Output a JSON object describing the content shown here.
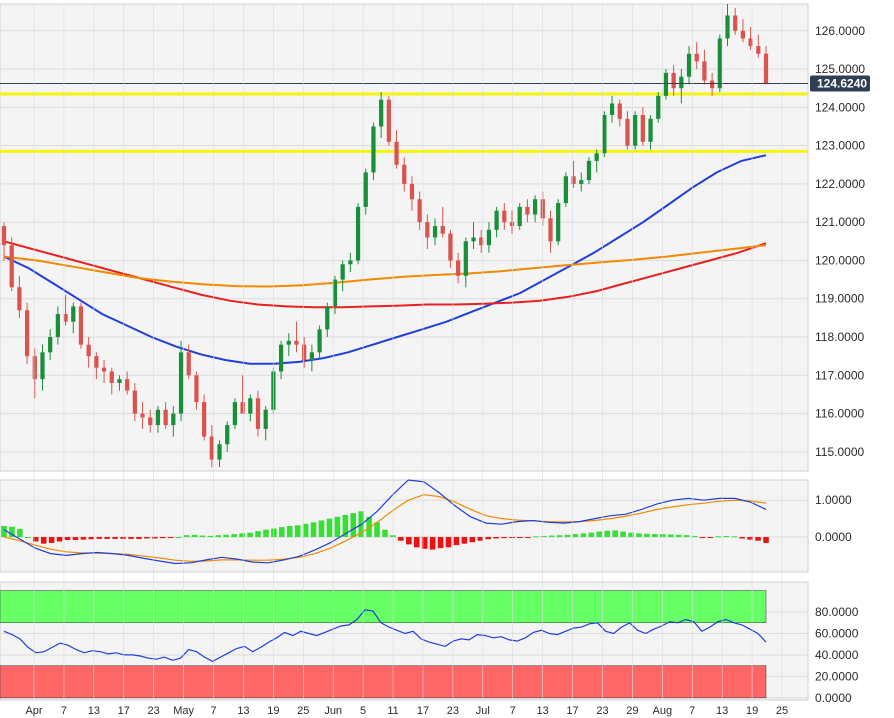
{
  "colors": {
    "background": "#ffffff",
    "panel_bg": "#f4f4f4",
    "grid": "#dcdcdc",
    "bull": "#1a8f3a",
    "bear": "#d9534f",
    "ma_fast": "#1f3fd8",
    "ma_mid": "#e82020",
    "ma_slow": "#f28a00",
    "horizontal_level": "#f5f50a",
    "price_tag": "#2f3e55",
    "macd_line": "#1f3fd8",
    "signal_line": "#f28a00",
    "hist_pos": "#33e033",
    "hist_neg": "#ee1111",
    "overbought_zone": "#66ff66",
    "oversold_zone": "#ff6666",
    "rsi_line": "#1f3fd8"
  },
  "chart_data": [
    {
      "type": "candlestick",
      "ylim": [
        114.5,
        126.7
      ],
      "yticks": [
        "115.0000",
        "116.0000",
        "117.0000",
        "118.0000",
        "119.0000",
        "120.0000",
        "121.0000",
        "122.0000",
        "123.0000",
        "124.0000",
        "125.0000",
        "126.0000"
      ],
      "xticks": [
        "Apr",
        "7",
        "13",
        "17",
        "23",
        "May",
        "7",
        "13",
        "19",
        "25",
        "Jun",
        "5",
        "11",
        "17",
        "23",
        "Jul",
        "7",
        "13",
        "17",
        "23",
        "29",
        "Aug",
        "7",
        "13",
        "19",
        "25"
      ],
      "last_price": "124.6240",
      "horizontal_levels": [
        124.35,
        122.85
      ],
      "candles": [
        [
          120.9,
          121.0,
          120.0,
          120.4
        ],
        [
          120.4,
          120.6,
          119.2,
          119.3
        ],
        [
          119.3,
          119.6,
          118.5,
          118.7
        ],
        [
          118.7,
          118.9,
          117.3,
          117.5
        ],
        [
          117.5,
          117.7,
          116.4,
          116.9
        ],
        [
          116.9,
          117.8,
          116.6,
          117.6
        ],
        [
          117.6,
          118.2,
          117.4,
          118.0
        ],
        [
          118.0,
          118.8,
          117.8,
          118.6
        ],
        [
          118.6,
          119.1,
          118.3,
          118.4
        ],
        [
          118.4,
          118.9,
          118.1,
          118.8
        ],
        [
          118.8,
          118.9,
          117.7,
          117.8
        ],
        [
          117.8,
          118.0,
          117.2,
          117.5
        ],
        [
          117.5,
          117.6,
          116.9,
          117.2
        ],
        [
          117.2,
          117.4,
          116.8,
          117.1
        ],
        [
          117.1,
          117.2,
          116.5,
          116.8
        ],
        [
          116.8,
          117.0,
          116.6,
          116.9
        ],
        [
          116.9,
          117.1,
          116.5,
          116.6
        ],
        [
          116.6,
          116.8,
          115.8,
          116.0
        ],
        [
          116.0,
          116.3,
          115.6,
          115.9
        ],
        [
          115.9,
          116.1,
          115.5,
          115.7
        ],
        [
          115.7,
          116.2,
          115.5,
          116.1
        ],
        [
          116.1,
          116.3,
          115.6,
          115.7
        ],
        [
          115.7,
          116.2,
          115.4,
          116.0
        ],
        [
          116.0,
          117.9,
          115.8,
          117.6
        ],
        [
          117.6,
          117.8,
          116.9,
          117.0
        ],
        [
          117.0,
          117.1,
          116.1,
          116.3
        ],
        [
          116.3,
          116.5,
          115.3,
          115.4
        ],
        [
          115.4,
          115.7,
          114.6,
          114.8
        ],
        [
          114.8,
          115.3,
          114.6,
          115.2
        ],
        [
          115.2,
          115.8,
          115.0,
          115.7
        ],
        [
          115.7,
          116.4,
          115.6,
          116.3
        ],
        [
          116.3,
          117.0,
          116.1,
          116.0
        ],
        [
          116.0,
          116.5,
          115.8,
          116.4
        ],
        [
          116.4,
          116.6,
          115.4,
          115.6
        ],
        [
          115.6,
          116.2,
          115.3,
          116.1
        ],
        [
          116.1,
          117.2,
          116.0,
          117.1
        ],
        [
          117.1,
          117.9,
          116.9,
          117.8
        ],
        [
          117.8,
          118.1,
          117.5,
          117.9
        ],
        [
          117.9,
          118.4,
          117.6,
          117.8
        ],
        [
          117.8,
          118.0,
          117.2,
          117.4
        ],
        [
          117.4,
          117.8,
          117.1,
          117.6
        ],
        [
          117.6,
          118.3,
          117.4,
          118.2
        ],
        [
          118.2,
          118.9,
          118.0,
          118.8
        ],
        [
          118.8,
          119.6,
          118.6,
          119.5
        ],
        [
          119.5,
          120.0,
          119.2,
          119.9
        ],
        [
          119.9,
          120.2,
          119.7,
          120.0
        ],
        [
          120.0,
          121.5,
          119.9,
          121.4
        ],
        [
          121.4,
          122.4,
          121.2,
          122.3
        ],
        [
          122.3,
          123.6,
          122.1,
          123.5
        ],
        [
          123.5,
          124.4,
          123.2,
          124.2
        ],
        [
          124.2,
          124.3,
          123.0,
          123.1
        ],
        [
          123.1,
          123.4,
          122.4,
          122.5
        ],
        [
          122.5,
          122.7,
          121.8,
          122.0
        ],
        [
          122.0,
          122.2,
          121.3,
          121.6
        ],
        [
          121.6,
          121.8,
          120.8,
          121.0
        ],
        [
          121.0,
          121.2,
          120.3,
          120.6
        ],
        [
          120.6,
          121.1,
          120.4,
          120.9
        ],
        [
          120.9,
          121.4,
          120.6,
          120.7
        ],
        [
          120.7,
          120.8,
          119.8,
          120.0
        ],
        [
          120.0,
          120.2,
          119.4,
          119.6
        ],
        [
          119.6,
          120.6,
          119.3,
          120.5
        ],
        [
          120.5,
          121.0,
          120.3,
          120.6
        ],
        [
          120.6,
          120.8,
          120.2,
          120.4
        ],
        [
          120.4,
          121.0,
          120.2,
          120.8
        ],
        [
          120.8,
          121.4,
          120.6,
          121.3
        ],
        [
          121.3,
          121.5,
          120.8,
          121.0
        ],
        [
          121.0,
          121.3,
          120.7,
          120.9
        ],
        [
          120.9,
          121.5,
          120.8,
          121.4
        ],
        [
          121.4,
          121.6,
          121.0,
          121.2
        ],
        [
          121.2,
          121.7,
          121.0,
          121.6
        ],
        [
          121.6,
          121.8,
          120.9,
          121.1
        ],
        [
          121.1,
          121.3,
          120.2,
          120.5
        ],
        [
          120.5,
          121.6,
          120.4,
          121.5
        ],
        [
          121.5,
          122.3,
          121.4,
          122.2
        ],
        [
          122.2,
          122.6,
          121.9,
          122.0
        ],
        [
          122.0,
          122.3,
          121.8,
          122.1
        ],
        [
          122.1,
          122.7,
          122.0,
          122.6
        ],
        [
          122.6,
          122.9,
          122.3,
          122.8
        ],
        [
          122.8,
          123.9,
          122.7,
          123.8
        ],
        [
          123.8,
          124.3,
          123.6,
          124.1
        ],
        [
          124.1,
          124.2,
          123.5,
          123.7
        ],
        [
          123.7,
          123.9,
          122.9,
          123.0
        ],
        [
          123.0,
          123.9,
          122.9,
          123.8
        ],
        [
          123.8,
          124.0,
          123.0,
          123.1
        ],
        [
          123.1,
          123.8,
          122.9,
          123.7
        ],
        [
          123.7,
          124.4,
          123.6,
          124.3
        ],
        [
          124.3,
          125.0,
          124.2,
          124.9
        ],
        [
          124.9,
          125.1,
          124.3,
          124.5
        ],
        [
          124.5,
          125.0,
          124.1,
          124.8
        ],
        [
          124.8,
          125.6,
          124.6,
          125.4
        ],
        [
          125.4,
          125.7,
          125.0,
          125.2
        ],
        [
          125.2,
          125.5,
          124.6,
          124.7
        ],
        [
          124.7,
          124.9,
          124.3,
          124.5
        ],
        [
          124.5,
          125.9,
          124.4,
          125.8
        ],
        [
          125.8,
          126.7,
          125.6,
          126.4
        ],
        [
          126.4,
          126.6,
          125.9,
          126.0
        ],
        [
          126.0,
          126.3,
          125.7,
          125.8
        ],
        [
          125.8,
          126.1,
          125.5,
          125.6
        ],
        [
          125.6,
          125.9,
          125.3,
          125.4
        ],
        [
          125.4,
          125.6,
          124.6,
          124.62
        ]
      ],
      "series": [
        {
          "ma": "fast",
          "values": [
            120.1,
            119.8,
            119.4,
            119.0,
            118.6,
            118.3,
            118.0,
            117.75,
            117.55,
            117.4,
            117.3,
            117.3,
            117.35,
            117.45,
            117.6,
            117.8,
            118.0,
            118.2,
            118.4,
            118.65,
            118.9,
            119.15,
            119.5,
            119.85,
            120.2,
            120.6,
            121.0,
            121.45,
            121.9,
            122.3,
            122.6,
            122.75
          ]
        },
        {
          "ma": "mid",
          "values": [
            120.5,
            120.3,
            120.1,
            119.9,
            119.7,
            119.5,
            119.3,
            119.1,
            118.95,
            118.85,
            118.8,
            118.78,
            118.78,
            118.8,
            118.82,
            118.85,
            118.85,
            118.87,
            118.9,
            118.95,
            119.05,
            119.2,
            119.4,
            119.6,
            119.8,
            120.0,
            120.2,
            120.45
          ]
        },
        {
          "ma": "slow",
          "values": [
            120.1,
            120.0,
            119.85,
            119.7,
            119.55,
            119.45,
            119.38,
            119.33,
            119.32,
            119.35,
            119.42,
            119.5,
            119.57,
            119.62,
            119.66,
            119.72,
            119.8,
            119.88,
            119.95,
            120.02,
            120.1,
            120.2,
            120.3,
            120.4
          ]
        }
      ]
    },
    {
      "type": "macd",
      "ylim": [
        -0.95,
        1.55
      ],
      "yticks": [
        "1.0000",
        "0.0000"
      ],
      "macd": [
        0.2,
        -0.05,
        -0.3,
        -0.45,
        -0.5,
        -0.45,
        -0.42,
        -0.45,
        -0.5,
        -0.58,
        -0.65,
        -0.72,
        -0.7,
        -0.62,
        -0.55,
        -0.6,
        -0.68,
        -0.7,
        -0.62,
        -0.52,
        -0.35,
        -0.15,
        0.1,
        0.35,
        0.7,
        1.15,
        1.55,
        1.5,
        1.2,
        0.85,
        0.55,
        0.38,
        0.35,
        0.42,
        0.45,
        0.4,
        0.38,
        0.42,
        0.5,
        0.58,
        0.62,
        0.75,
        0.9,
        1.0,
        1.05,
        1.0,
        1.05,
        1.05,
        0.95,
        0.75
      ],
      "signal": [
        0.0,
        -0.1,
        -0.22,
        -0.33,
        -0.4,
        -0.43,
        -0.44,
        -0.45,
        -0.47,
        -0.52,
        -0.57,
        -0.63,
        -0.66,
        -0.65,
        -0.62,
        -0.62,
        -0.63,
        -0.63,
        -0.6,
        -0.55,
        -0.45,
        -0.3,
        -0.1,
        0.12,
        0.4,
        0.72,
        1.0,
        1.15,
        1.1,
        0.95,
        0.75,
        0.58,
        0.5,
        0.46,
        0.44,
        0.42,
        0.41,
        0.42,
        0.45,
        0.5,
        0.57,
        0.65,
        0.75,
        0.82,
        0.88,
        0.92,
        0.97,
        1.0,
        0.98,
        0.92
      ],
      "hist": [
        0.3,
        0.28,
        0.22,
        0.0,
        -0.12,
        -0.18,
        -0.16,
        -0.12,
        -0.08,
        -0.08,
        -0.07,
        -0.06,
        -0.05,
        -0.05,
        -0.05,
        -0.05,
        -0.05,
        -0.05,
        -0.04,
        -0.04,
        -0.03,
        -0.02,
        0.0,
        0.05,
        0.06,
        0.04,
        0.03,
        0.05,
        0.06,
        0.08,
        0.1,
        0.12,
        0.16,
        0.2,
        0.23,
        0.27,
        0.3,
        0.32,
        0.36,
        0.4,
        0.45,
        0.5,
        0.55,
        0.6,
        0.65,
        0.7,
        0.55,
        0.4,
        0.2,
        0.05,
        -0.1,
        -0.2,
        -0.28,
        -0.32,
        -0.34,
        -0.3,
        -0.28,
        -0.22,
        -0.18,
        -0.14,
        -0.1,
        -0.06,
        -0.04,
        -0.03,
        -0.02,
        -0.02,
        -0.02,
        0.02,
        0.03,
        0.04,
        0.05,
        0.06,
        0.08,
        0.1,
        0.12,
        0.15,
        0.17,
        0.18,
        0.15,
        0.12,
        0.1,
        0.09,
        0.08,
        0.08,
        0.07,
        0.06,
        0.05,
        0.03,
        -0.02,
        -0.02,
        0.02,
        0.03,
        0.02,
        -0.04,
        -0.07,
        -0.1,
        -0.16
      ]
    },
    {
      "type": "rsi",
      "ylim": [
        -2,
        108
      ],
      "yticks": [
        "80.0000",
        "60.0000",
        "40.0000",
        "20.0000",
        "0.0000"
      ],
      "overbought_from": 70,
      "oversold_to": 30,
      "values": [
        62,
        59,
        55,
        47,
        42,
        43,
        47,
        51,
        49,
        45,
        42,
        44,
        43,
        41,
        42,
        40,
        40,
        39,
        37,
        36,
        38,
        35,
        37,
        45,
        43,
        38,
        34,
        38,
        42,
        46,
        48,
        43,
        47,
        52,
        56,
        61,
        58,
        62,
        60,
        58,
        61,
        64,
        67,
        68,
        73,
        82,
        81,
        70,
        66,
        63,
        60,
        62,
        55,
        52,
        50,
        48,
        53,
        55,
        54,
        59,
        58,
        56,
        57,
        54,
        53,
        56,
        61,
        63,
        60,
        59,
        62,
        65,
        66,
        69,
        70,
        62,
        60,
        66,
        70,
        63,
        60,
        64,
        67,
        71,
        70,
        73,
        71,
        62,
        66,
        71,
        73,
        70,
        68,
        64,
        60,
        52
      ]
    }
  ]
}
